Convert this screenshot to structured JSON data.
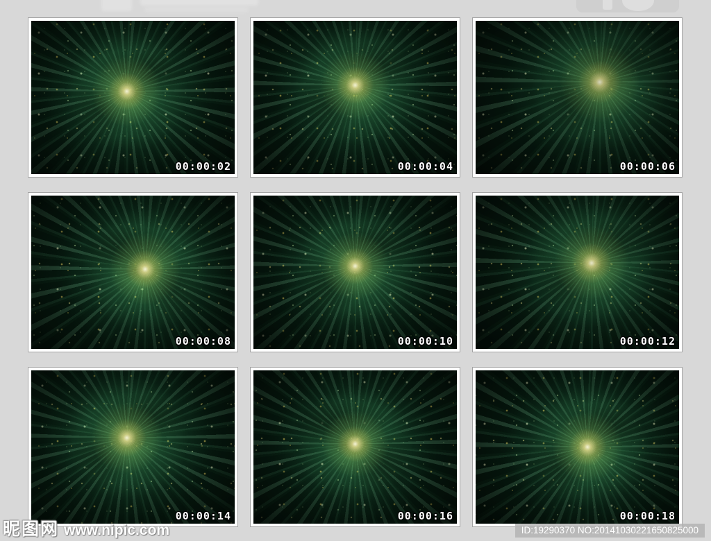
{
  "page": {
    "background_color": "#d8d8d8"
  },
  "thumbnails": [
    {
      "time": "00:00:02"
    },
    {
      "time": "00:00:04"
    },
    {
      "time": "00:00:06"
    },
    {
      "time": "00:00:08"
    },
    {
      "time": "00:00:10"
    },
    {
      "time": "00:00:12"
    },
    {
      "time": "00:00:14"
    },
    {
      "time": "00:00:16"
    },
    {
      "time": "00:00:18"
    }
  ],
  "footer": {
    "site_logo": "昵图网",
    "site_url": "www.nipic.com",
    "id_text": "ID:19290370 NO:20141030221650825000"
  },
  "art_colors": {
    "particle_gold": "#ffd75e",
    "pale_sparkle": "#fff3c0",
    "ray_green": "#59b877",
    "deep_green": "#0d3a22",
    "background_dark": "#04100a"
  }
}
